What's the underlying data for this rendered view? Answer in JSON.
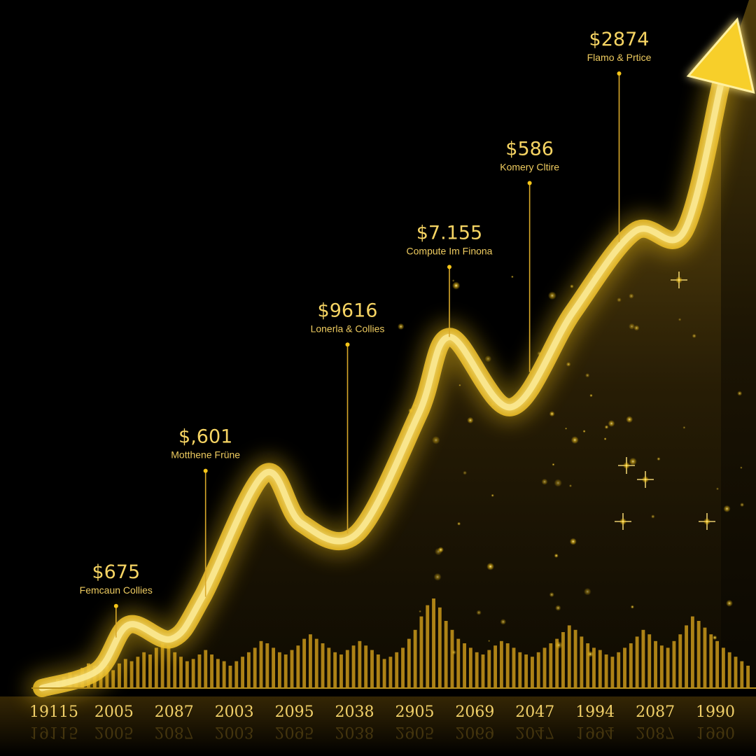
{
  "chart_data": {
    "type": "area",
    "title": "",
    "xlabel": "",
    "ylabel": "",
    "x_tick_labels": [
      "19115",
      "2005",
      "2087",
      "2003",
      "2095",
      "2038",
      "2905",
      "2069",
      "2047",
      "1994",
      "2087",
      "1990"
    ],
    "line_points": [
      {
        "x": 0.0,
        "y": 0.0
      },
      {
        "x": 0.9,
        "y": 0.25
      },
      {
        "x": 1.4,
        "y": 0.9
      },
      {
        "x": 2.1,
        "y": 0.7
      },
      {
        "x": 2.6,
        "y": 1.3
      },
      {
        "x": 3.6,
        "y": 3.05
      },
      {
        "x": 4.2,
        "y": 2.35
      },
      {
        "x": 5.1,
        "y": 2.2
      },
      {
        "x": 6.1,
        "y": 3.9
      },
      {
        "x": 6.6,
        "y": 5.0
      },
      {
        "x": 7.6,
        "y": 4.0
      },
      {
        "x": 8.6,
        "y": 5.35
      },
      {
        "x": 9.6,
        "y": 6.5
      },
      {
        "x": 10.4,
        "y": 6.5
      },
      {
        "x": 11.0,
        "y": 8.6
      }
    ],
    "annotations": [
      {
        "x": 1.2,
        "y": 0.72,
        "value": "$675",
        "label": "Femcaun Collies"
      },
      {
        "x": 2.65,
        "y": 1.3,
        "value": "$,601",
        "label": "Motthene Früne"
      },
      {
        "x": 4.95,
        "y": 2.2,
        "value": "$9616",
        "label": "Lonerla & Collies"
      },
      {
        "x": 6.6,
        "y": 5.0,
        "value": "$7.155",
        "label": "Compute Im Finona"
      },
      {
        "x": 7.9,
        "y": 4.5,
        "value": "$586",
        "label": "Komery Cltire"
      },
      {
        "x": 9.35,
        "y": 6.35,
        "value": "$2874",
        "label": "Flamo & Prtice"
      }
    ],
    "histogram_values": [
      0.4,
      0.5,
      0.7,
      0.6,
      0.9,
      1.1,
      1.0,
      1.2,
      1.0,
      0.8,
      1.1,
      1.3,
      1.2,
      1.4,
      1.6,
      1.5,
      1.8,
      2.0,
      1.9,
      1.6,
      1.4,
      1.2,
      1.3,
      1.5,
      1.7,
      1.5,
      1.3,
      1.2,
      1.0,
      1.2,
      1.4,
      1.6,
      1.8,
      2.1,
      2.0,
      1.8,
      1.6,
      1.5,
      1.7,
      1.9,
      2.2,
      2.4,
      2.2,
      2.0,
      1.8,
      1.6,
      1.5,
      1.7,
      1.9,
      2.1,
      1.9,
      1.7,
      1.5,
      1.3,
      1.4,
      1.6,
      1.8,
      2.2,
      2.6,
      3.2,
      3.7,
      4.0,
      3.6,
      3.0,
      2.6,
      2.2,
      2.0,
      1.8,
      1.6,
      1.5,
      1.7,
      1.9,
      2.1,
      2.0,
      1.8,
      1.6,
      1.5,
      1.4,
      1.6,
      1.8,
      2.0,
      2.2,
      2.5,
      2.8,
      2.6,
      2.3,
      2.0,
      1.8,
      1.7,
      1.5,
      1.4,
      1.6,
      1.8,
      2.0,
      2.3,
      2.6,
      2.4,
      2.1,
      1.9,
      1.8,
      2.1,
      2.4,
      2.8,
      3.2,
      3.0,
      2.7,
      2.4,
      2.1,
      1.8,
      1.6,
      1.4,
      1.2,
      1.0
    ],
    "colors": {
      "background": "#000000",
      "gold": "#f5c518",
      "highlight": "#fff2a8",
      "text": "#f6d463"
    }
  }
}
